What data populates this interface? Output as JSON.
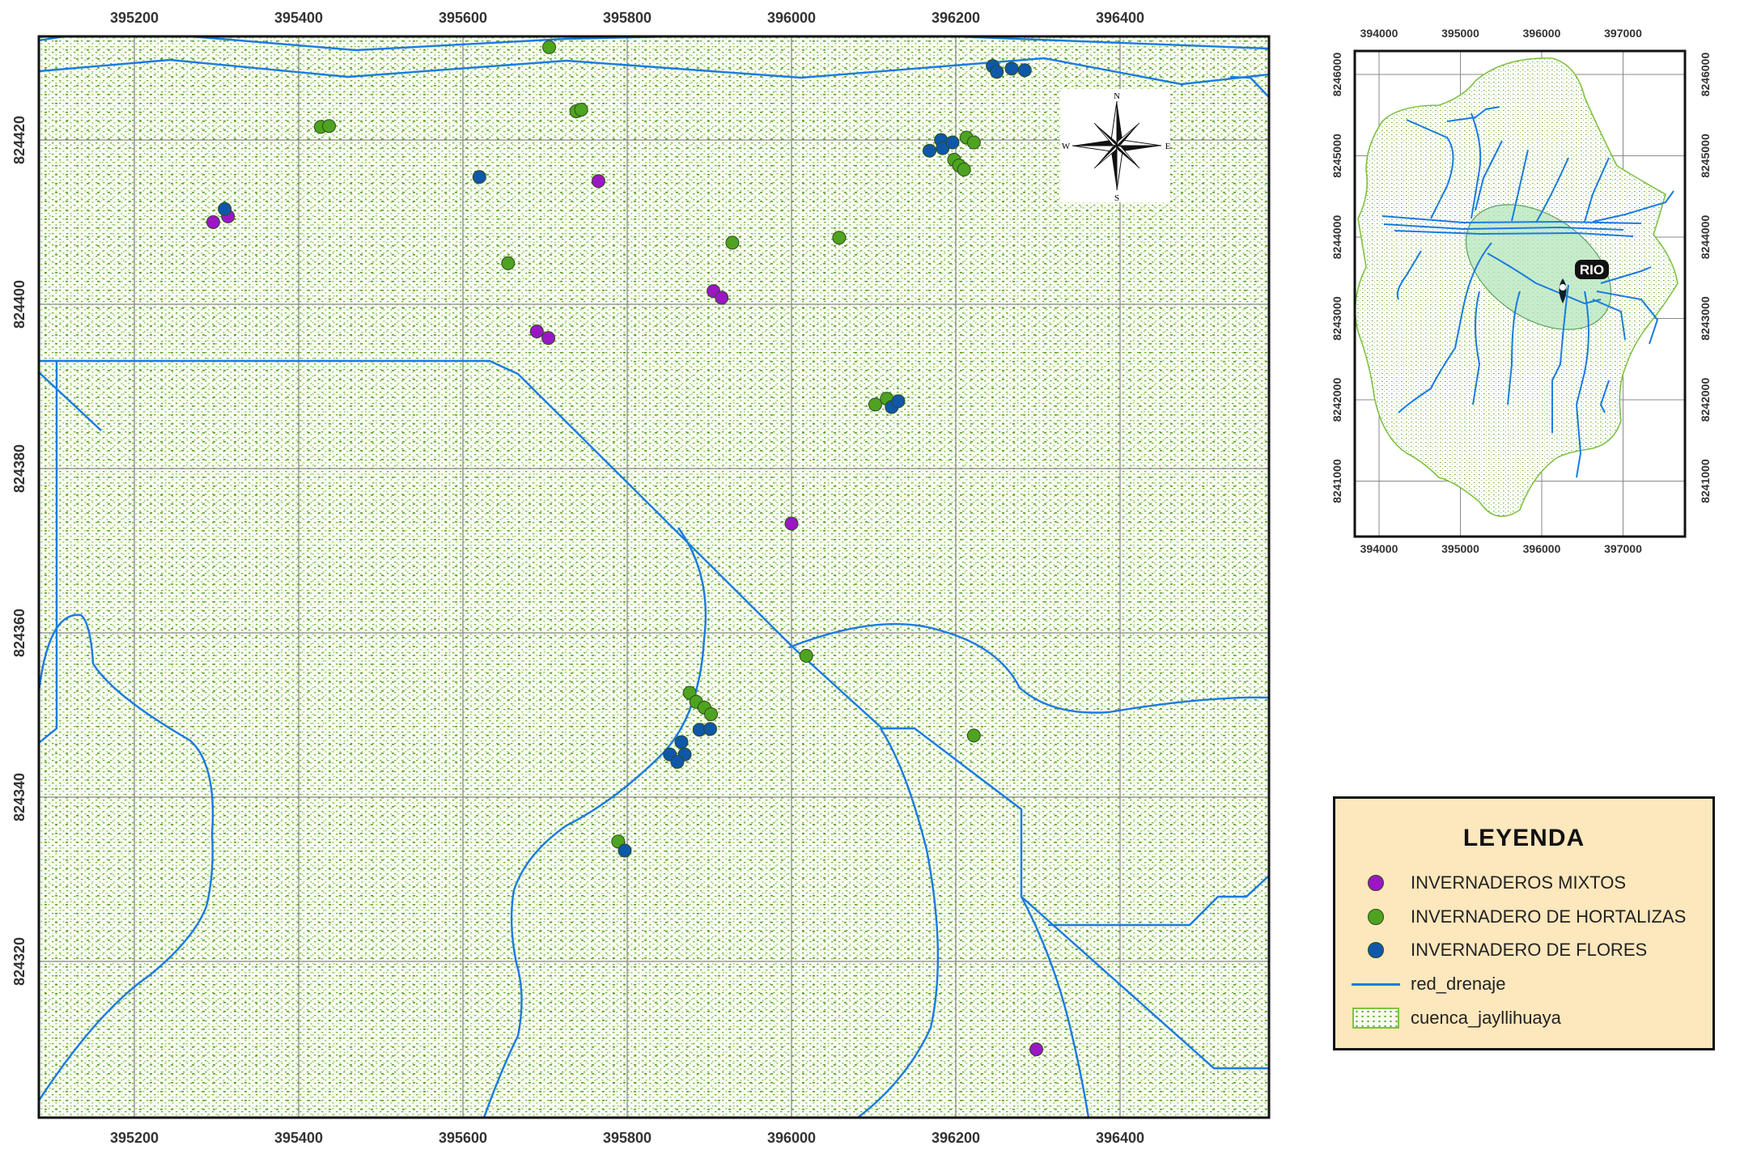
{
  "main_map": {
    "x_ticks": [
      "395200",
      "395400",
      "395600",
      "395800",
      "396000",
      "396200",
      "396400"
    ],
    "y_ticks": [
      "824420",
      "824400",
      "824380",
      "824360",
      "824340",
      "824320"
    ],
    "north_arrow": {
      "n": "N",
      "s": "S",
      "e": "E",
      "w": "W"
    },
    "points": [
      {
        "cls": "mix",
        "x": 395296,
        "y": 8244100
      },
      {
        "cls": "mix",
        "x": 395314,
        "y": 8244107
      },
      {
        "cls": "flo",
        "x": 395310,
        "y": 8244116
      },
      {
        "cls": "hor",
        "x": 395427,
        "y": 8244216
      },
      {
        "cls": "hor",
        "x": 395437,
        "y": 8244217
      },
      {
        "cls": "hor",
        "x": 395705,
        "y": 8244313
      },
      {
        "cls": "hor",
        "x": 395738,
        "y": 8244235
      },
      {
        "cls": "hor",
        "x": 395744,
        "y": 8244237
      },
      {
        "cls": "flo",
        "x": 395620,
        "y": 8244155
      },
      {
        "cls": "mix",
        "x": 395765,
        "y": 8244150
      },
      {
        "cls": "hor",
        "x": 395655,
        "y": 8244050
      },
      {
        "cls": "hor",
        "x": 395928,
        "y": 8244075
      },
      {
        "cls": "hor",
        "x": 396058,
        "y": 8244081
      },
      {
        "cls": "mix",
        "x": 395905,
        "y": 8244016
      },
      {
        "cls": "mix",
        "x": 395915,
        "y": 8244008
      },
      {
        "cls": "mix",
        "x": 395690,
        "y": 8243967
      },
      {
        "cls": "mix",
        "x": 395704,
        "y": 8243959
      },
      {
        "cls": "hor",
        "x": 396102,
        "y": 8243878
      },
      {
        "cls": "hor",
        "x": 396116,
        "y": 8243885
      },
      {
        "cls": "flo",
        "x": 396122,
        "y": 8243875
      },
      {
        "cls": "flo",
        "x": 396130,
        "y": 8243882
      },
      {
        "cls": "mix",
        "x": 396000,
        "y": 8243733
      },
      {
        "cls": "hor",
        "x": 396018,
        "y": 8243572
      },
      {
        "cls": "hor",
        "x": 396222,
        "y": 8243475
      },
      {
        "cls": "hor",
        "x": 395876,
        "y": 8243527
      },
      {
        "cls": "hor",
        "x": 395884,
        "y": 8243516
      },
      {
        "cls": "hor",
        "x": 395894,
        "y": 8243509
      },
      {
        "cls": "hor",
        "x": 395902,
        "y": 8243501
      },
      {
        "cls": "flo",
        "x": 395888,
        "y": 8243482
      },
      {
        "cls": "flo",
        "x": 395901,
        "y": 8243483
      },
      {
        "cls": "flo",
        "x": 395866,
        "y": 8243467
      },
      {
        "cls": "flo",
        "x": 395852,
        "y": 8243452
      },
      {
        "cls": "flo",
        "x": 395870,
        "y": 8243452
      },
      {
        "cls": "flo",
        "x": 395861,
        "y": 8243443
      },
      {
        "cls": "hor",
        "x": 395789,
        "y": 8243346
      },
      {
        "cls": "flo",
        "x": 395797,
        "y": 8243335
      },
      {
        "cls": "mix",
        "x": 396298,
        "y": 8243093
      },
      {
        "cls": "flo",
        "x": 396245,
        "y": 8244290
      },
      {
        "cls": "flo",
        "x": 396250,
        "y": 8244283
      },
      {
        "cls": "flo",
        "x": 396268,
        "y": 8244287
      },
      {
        "cls": "flo",
        "x": 396284,
        "y": 8244285
      },
      {
        "cls": "flo",
        "x": 396168,
        "y": 8244187
      },
      {
        "cls": "flo",
        "x": 396182,
        "y": 8244200
      },
      {
        "cls": "flo",
        "x": 396184,
        "y": 8244190
      },
      {
        "cls": "flo",
        "x": 396196,
        "y": 8244197
      },
      {
        "cls": "hor",
        "x": 396213,
        "y": 8244203
      },
      {
        "cls": "hor",
        "x": 396222,
        "y": 8244197
      },
      {
        "cls": "hor",
        "x": 396198,
        "y": 8244176
      },
      {
        "cls": "hor",
        "x": 396204,
        "y": 8244169
      },
      {
        "cls": "hor",
        "x": 396210,
        "y": 8244164
      }
    ]
  },
  "inset_map": {
    "x_ticks": [
      "394000",
      "395000",
      "396000",
      "397000"
    ],
    "y_ticks": [
      "8246000",
      "8245000",
      "8244000",
      "8243000",
      "8242000",
      "8241000"
    ],
    "label": "RIO"
  },
  "legend": {
    "title": "LEYENDA",
    "items": [
      {
        "label": "INVERNADEROS MIXTOS",
        "color": "#9b16c4"
      },
      {
        "label": "INVERNADERO DE HORTALIZAS",
        "color": "#4ea320"
      },
      {
        "label": "INVERNADERO DE FLORES",
        "color": "#0f57a8"
      },
      {
        "label": "red_drenaje",
        "color": "#1a7be0"
      },
      {
        "label": "cuenca_jayllihuaya",
        "color": "#7fc141"
      }
    ]
  },
  "colors": {
    "mixtos": "#9b16c4",
    "hortalizas": "#4ea320",
    "flores": "#0f57a8",
    "drenaje": "#1a7be0",
    "cuenca": "#6aae2f"
  }
}
